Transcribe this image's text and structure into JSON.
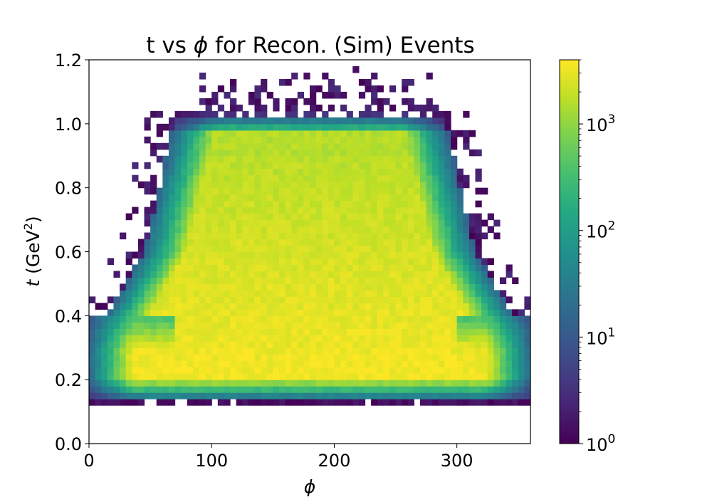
{
  "chart_data": {
    "type": "heatmap",
    "title": "t vs ",
    "title_symbol": "ϕ",
    "title_rest": " for Recon. (Sim) Events",
    "xlabel": "ϕ",
    "ylabel_italic": "t",
    "ylabel_rest": " (GeV",
    "ylabel_sup": "2",
    "ylabel_close": ")",
    "xlim": [
      0,
      360
    ],
    "ylim": [
      0.0,
      1.2
    ],
    "x_ticks": [
      0,
      100,
      200,
      300
    ],
    "x_tick_labels": [
      "0",
      "100",
      "200",
      "300"
    ],
    "y_ticks": [
      0.0,
      0.2,
      0.4,
      0.6,
      0.8,
      1.0,
      1.2
    ],
    "y_tick_labels": [
      "0.0",
      "0.2",
      "0.4",
      "0.6",
      "0.8",
      "1.0",
      "1.2"
    ],
    "colorbar": {
      "scale": "log",
      "range": [
        1,
        4000
      ],
      "colormap": "viridis",
      "major_ticks": [
        1,
        10,
        100,
        1000
      ],
      "tick_base": [
        "10",
        "10",
        "10",
        "10"
      ],
      "tick_exp": [
        "0",
        "1",
        "2",
        "3"
      ]
    },
    "bins": {
      "nx": 72,
      "ny": 60,
      "x_bin_width": 5,
      "y_bin_width": 0.02
    },
    "description_points": {
      "t_min_populated": 0.12,
      "band_top_t": 1.02,
      "band_phi_range_at_t_1": [
        80,
        290
      ],
      "peak_region": {
        "phi": [
          100,
          260
        ],
        "t": [
          0.2,
          0.45
        ]
      }
    }
  }
}
